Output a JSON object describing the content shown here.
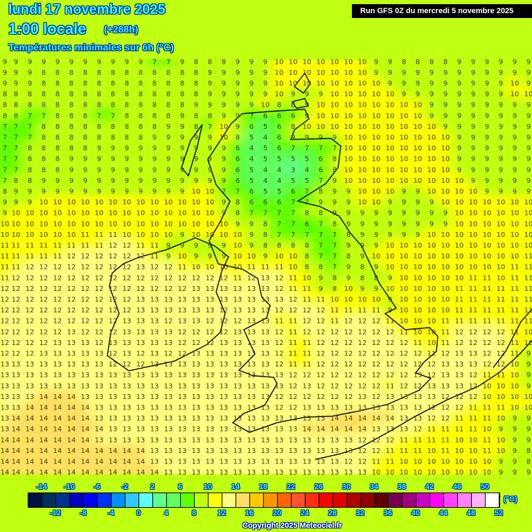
{
  "header": {
    "date": "lundi 17 novembre 2025",
    "time": "1:00 locale",
    "lead": "(+288h)",
    "parameter": "Températures minimales sur 6h (°C)",
    "run": "Run GFS 0Z du mercredi 5 novembre 2025"
  },
  "copyright": "Copyright 2025 Meteociel.fr",
  "legend": {
    "unit": "(°C)",
    "top_labels": [
      "-14",
      "-10",
      "-6",
      "-2",
      "2",
      "6",
      "10",
      "14",
      "18",
      "22",
      "26",
      "30",
      "34",
      "38",
      "42",
      "46",
      "50"
    ],
    "bottom_labels": [
      "-12",
      "-8",
      "-4",
      "0",
      "4",
      "8",
      "12",
      "16",
      "20",
      "24",
      "28",
      "32",
      "36",
      "40",
      "44",
      "48",
      "52"
    ],
    "colors": [
      "#001040",
      "#003060",
      "#003090",
      "#0000c0",
      "#0000ff",
      "#0030ff",
      "#0090ff",
      "#30c8ff",
      "#60ffff",
      "#60ff90",
      "#60ff60",
      "#60ff00",
      "#c0ff10",
      "#ffff00",
      "#ffff80",
      "#ffe060",
      "#ffc800",
      "#ff9600",
      "#ff6400",
      "#ff5030",
      "#ff3010",
      "#ff0000",
      "#e00000",
      "#b00000",
      "#900000",
      "#600000",
      "#780050",
      "#a00080",
      "#c800c8",
      "#ff00ff",
      "#ff40ff",
      "#ff80ff",
      "#ffb0ff",
      "#ffffff"
    ],
    "min": -16,
    "step": 2
  },
  "grid": [
    "9 9 9 9 9 9 9 9 9 9 9 7 7 9 8 8 8 9 9 9 10 10 10 10 10 10 10 9 9 8 8 8 8 9 9 9 9 9 9",
    "9 9 9 8 8 8 8 8 8 8 8 8 8 8 8 9 9 9 9 9 10 10 10 10 10 10 10 9 9 9 9 9 9 9 9 9 9 9 9",
    "9 9 9 8 8 8 8 8 8 8 8 8 8 8 8 9 9 9 9 9 10 10 10 10 10 10 10 10 9 9 9 9 9 9 9 9 9 10 9",
    "8 8 8 8 8 8 8 8 8 8 8 8 8 8 8 9 9 9 9 9 10 9 9 9 10 10 10 10 10 9 9 9 9 9 9 9 9 10 10",
    "8 8 8 8 8 8 8 8 8 8 8 8 8 8 9 9 9 9 9 10 8 8 9 10 10 10 10 10 10 10 10 9 9 9 9 9 9 9 9",
    "8 8 7 7 8 8 8 7 7 8 8 8 8 9 8 8 9 9 7 6 6 6 9 10 10 10 10 10 10 10 10 9 9 9 9 9 9 9 9",
    "7 7 7 8 8 8 8 8 8 8 8 8 9 9 8 7 10 9 6 5 6 8 10 10 10 10 10 10 10 10 10 10 9 9 9 9 9 9 9",
    "7 7 7 8 8 8 8 8 8 8 8 9 9 9 9 9 10 8 5 4 6 9 9 9 9 10 10 10 10 10 10 10 10 9 9 9 9 9 9",
    "7 7 8 8 8 8 8 9 9 9 9 9 9 9 9 9 9 6 4 5 6 7 7 7 7 10 10 10 10 10 10 10 10 9 9 9 9 9 9",
    "7 7 8 8 8 9 9 9 9 9 9 9 9 9 9 9 9 6 4 5 5 5 5 6 8 10 10 10 10 10 10 10 10 9 9 9 9 9 9",
    "7 7 8 8 8 9 9 9 9 9 9 9 9 9 9 9 9 6 5 4 4 3 4 6 8 10 10 10 10 10 10 10 10 9 9 9 9 9 9",
    "7 8 8 9 9 9 9 9 9 9 9 9 9 9 9 9 9 6 5 4 4 5 5 7 9 10 10 10 10 10 10 10 10 10 9 9 9 9 9",
    "8 9 9 9 9 9 9 9 9 9 9 9 9 9 10 10 7 7 6 5 5 6 7 8 9 9 10 10 10 9 9 10 10 10 10 9 9 9 9",
    "9 9 9 10 10 10 10 10 10 10 10 10 10 10 10 10 9 8 6 6 6 7 7 9 9 9 10 10 9 9 9 9 10 10 10 10 10 10 10",
    "9 10 10 10 10 10 10 10 10 10 10 10 10 10 10 10 9 8 7 7 7 7 8 8 9 9 9 9 9 9 9 9 9 10 10 10 10 10 10",
    "10 10 10 10 10 10 10 10 10 10 10 10 10 10 10 10 10 9 9 8 7 7 6 7 8 9 9 9 9 9 9 9 9 10 10 10 10 10 10",
    "10 10 10 10 10 10 11 11 11 10 10 10 10 9 10 10 10 10 9 8 7 7 7 7 7 8 9 9 9 9 9 10 10 10 10 10 10 10 10",
    "11 11 11 11 11 11 11 11 12 12 11 11 9 9 9 9 9 10 9 8 8 8 8 7 7 9 9 9 10 10 10 10 10 10 10 10 10 10 10",
    "11 11 11 11 11 12 12 12 12 12 12 11 9 10 9 9 9 10 10 9 10 10 8 7 7 8 9 10 10 10 10 10 10 10 10 10 10 10 11",
    "11 11 12 12 12 12 12 12 12 12 13 12 12 11 10 10 10 10 11 11 11 10 8 8 7 9 8 9 10 10 10 10 10 10 10 10 10 11 11",
    "11 12 12 12 12 12 12 12 12 12 12 12 12 12 12 12 12 11 12 13 12 11 10 9 8 9 8 8 9 10 10 10 10 10 11 11 10 11 11",
    "12 12 12 12 12 12 12 12 12 12 12 12 12 12 13 13 13 13 13 13 12 11 11 9 8 10 9 9 10 10 10 10 10 11 11 11 11 11 11",
    "12 12 12 12 12 12 12 12 12 12 13 13 13 13 13 13 13 13 13 13 13 12 11 11 10 10 10 10 9 10 10 10 10 11 11 11 11 11 11",
    "12 12 12 12 12 12 12 12 12 12 13 13 13 13 13 13 12 13 13 13 12 12 12 12 11 11 11 11 9 10 10 10 10 11 11 11 11 11 11",
    "12 12 12 12 12 12 12 12 12 13 13 13 12 13 13 12 12 12 13 13 11 11 12 12 11 12 12 12 11 10 10 10 11 11 11 11 11 11 11",
    "12 12 12 12 12 13 12 12 12 13 13 13 13 12 12 12 12 13 13 13 12 11 12 12 12 12 12 12 12 11 10 10 11 12 12 12 12 11 10",
    "12 12 12 12 13 13 13 12 13 13 13 13 13 12 12 12 13 13 13 13 12 11 11 12 12 12 12 12 12 12 11 10 11 12 12 12 12 11 10",
    "12 12 12 13 13 13 13 13 12 13 12 13 12 12 13 13 13 13 13 13 12 11 11 12 12 12 12 12 12 12 12 11 12 13 13 12 12 11 9",
    "13 13 13 13 13 13 13 13 12 12 12 13 13 13 13 13 13 13 13 13 12 11 11 12 12 12 12 12 12 12 12 12 13 13 13 12 12 10 9",
    "13 13 13 13 13 13 13 13 13 13 13 13 13 13 13 13 13 13 13 13 13 12 12 12 12 12 12 12 12 12 13 12 13 13 12 11 11 10 9",
    "13 13 13 13 13 13 13 13 13 13 13 13 13 13 13 13 13 13 13 13 13 12 13 12 12 12 12 12 11 12 12 13 13 13 12 10 10 10 9",
    "13 13 13 14 14 14 13 13 13 13 13 13 13 13 13 13 13 13 13 13 12 12 12 12 12 12 13 12 13 13 13 13 12 12 12 10 10 10 10",
    "13 13 14 14 14 14 14 13 13 13 13 13 13 13 13 13 13 13 13 13 12 12 13 13 13 13 13 13 13 13 13 12 12 12 11 11 11 10 10",
    "13 14 14 14 14 14 14 13 13 13 13 13 13 13 13 13 13 13 13 13 13 13 13 13 14 14 14 14 14 13 13 12 12 11 11 11 10 9 9",
    "13 14 14 14 14 14 14 14 13 13 13 13 13 13 13 13 13 13 13 13 13 13 14 14 14 14 14 13 13 13 12 11 11 11 11 10 9 9 9",
    "14 14 14 14 14 14 14 13 13 13 13 13 13 13 13 13 13 13 13 13 13 13 13 13 13 13 12 12 12 11 11 11 11 10 10 11 10 9 9",
    "14 14 14 14 14 14 14 14 14 14 14 13 13 13 13 13 13 13 13 13 13 13 13 13 13 13 12 12 11 11 11 10 11 10 10 11 10 9 8",
    "14 14 14 14 14 14 14 14 14 14 14 13 13 13 13 13 13 13 13 13 13 13 13 13 13 12 12 11 11 10 10 10 10 10 10 10 9 9 8",
    "14 14 14 14 14 14 14 14 14 14 14 14 13 13 13 13 13 13 13 13 13 13 13 13 13 13 13 10 10 10 10 10 10 10 10 10 9 9 9"
  ]
}
